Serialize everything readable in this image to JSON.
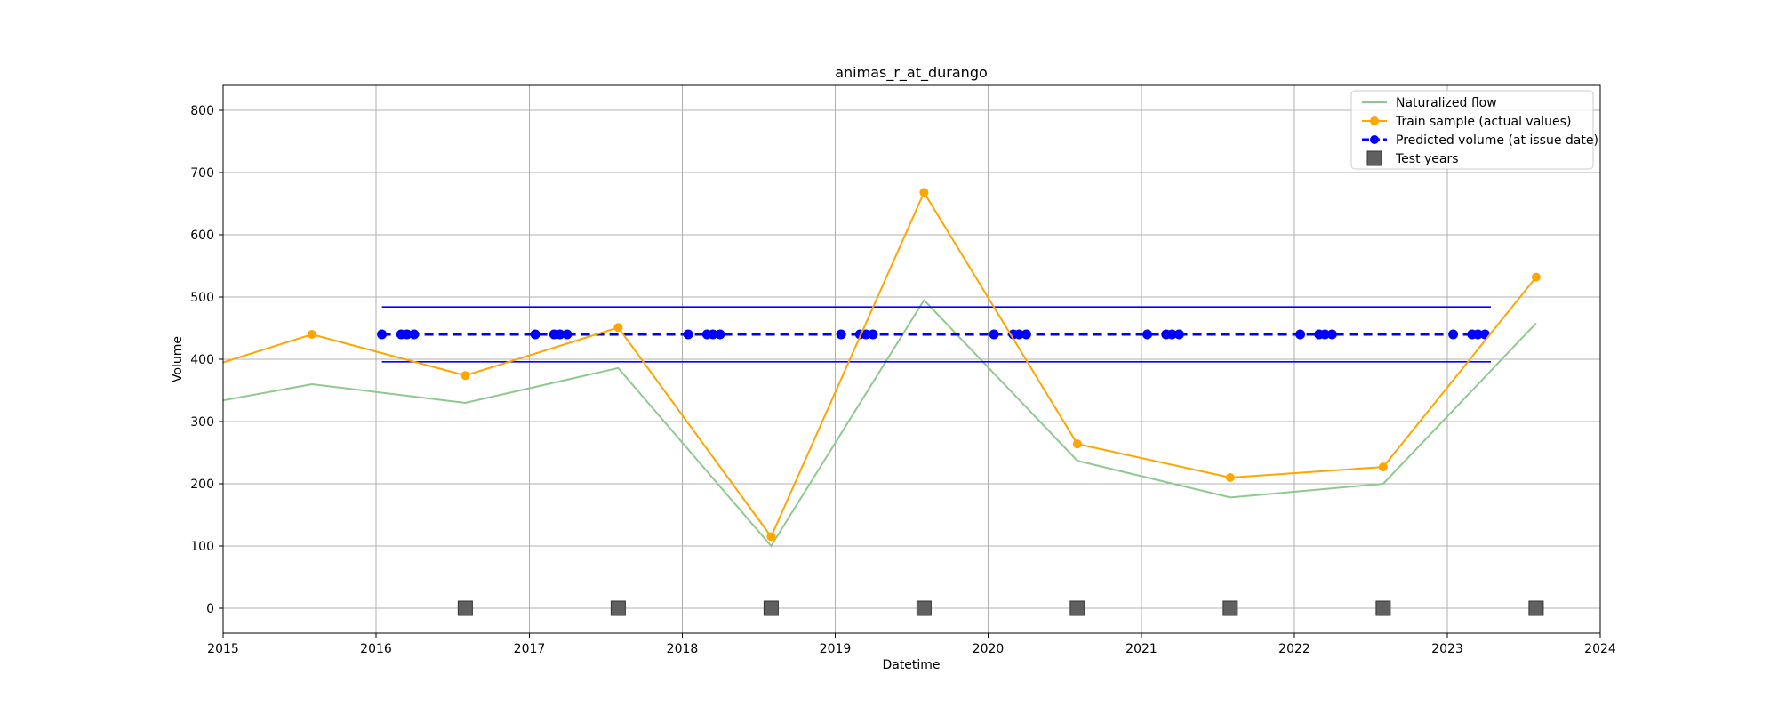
{
  "chart_data": {
    "type": "line",
    "title": "animas_r_at_durango",
    "xlabel": "Datetime",
    "ylabel": "Volume",
    "xlim": [
      "2015-01-01",
      "2024-01-01"
    ],
    "ylim": [
      -40,
      840
    ],
    "grid": true,
    "legend_position": "top-right",
    "x_ticks": [
      "2015",
      "2016",
      "2017",
      "2018",
      "2019",
      "2020",
      "2021",
      "2022",
      "2023",
      "2024"
    ],
    "y_ticks": [
      0,
      100,
      200,
      300,
      400,
      500,
      600,
      700,
      800
    ],
    "colors": {
      "naturalized": "#8fc98f",
      "train": "#ffa500",
      "predicted": "#0000ff",
      "interval": "#0000ff",
      "test": "#606060"
    },
    "series": [
      {
        "name": "Naturalized flow",
        "style": "line",
        "points": [
          [
            "2015-01-01",
            334
          ],
          [
            "2015-08-01",
            360
          ],
          [
            "2016-08-01",
            330
          ],
          [
            "2017-08-01",
            386
          ],
          [
            "2018-08-01",
            100
          ],
          [
            "2019-08-01",
            495
          ],
          [
            "2020-08-01",
            237
          ],
          [
            "2021-08-01",
            178
          ],
          [
            "2022-08-01",
            200
          ],
          [
            "2023-08-01",
            458
          ]
        ]
      },
      {
        "name": "Train sample (actual values)",
        "style": "line-markers",
        "points": [
          [
            "2015-01-01",
            395
          ],
          [
            "2015-08-01",
            440
          ],
          [
            "2016-08-01",
            374
          ],
          [
            "2017-08-01",
            451
          ],
          [
            "2018-08-01",
            115
          ],
          [
            "2019-08-01",
            668
          ],
          [
            "2020-08-01",
            264
          ],
          [
            "2021-08-01",
            210
          ],
          [
            "2022-08-01",
            227
          ],
          [
            "2023-08-01",
            532
          ]
        ]
      },
      {
        "name": "Predicted volume (at issue date)",
        "style": "dashed-markers",
        "value": 440,
        "issue_dates": [
          "2016-01-15",
          "2016-03-01",
          "2016-03-15",
          "2016-04-01",
          "2017-01-15",
          "2017-03-01",
          "2017-03-15",
          "2017-04-01",
          "2018-01-15",
          "2018-03-01",
          "2018-03-15",
          "2018-04-01",
          "2019-01-15",
          "2019-03-01",
          "2019-03-15",
          "2019-04-01",
          "2020-01-15",
          "2020-03-01",
          "2020-03-15",
          "2020-04-01",
          "2021-01-15",
          "2021-03-01",
          "2021-03-15",
          "2021-04-01",
          "2022-01-15",
          "2022-03-01",
          "2022-03-15",
          "2022-04-01",
          "2023-01-15",
          "2023-03-01",
          "2023-03-15",
          "2023-04-01"
        ]
      },
      {
        "style": "band-lines",
        "upper": 484,
        "lower": 396,
        "x_range": [
          "2016-01-15",
          "2023-04-15"
        ]
      },
      {
        "name": "Test years",
        "style": "square-markers",
        "value": 0,
        "dates": [
          "2016-08-01",
          "2017-08-01",
          "2018-08-01",
          "2019-08-01",
          "2020-08-01",
          "2021-08-01",
          "2022-08-01",
          "2023-08-01"
        ]
      }
    ]
  }
}
